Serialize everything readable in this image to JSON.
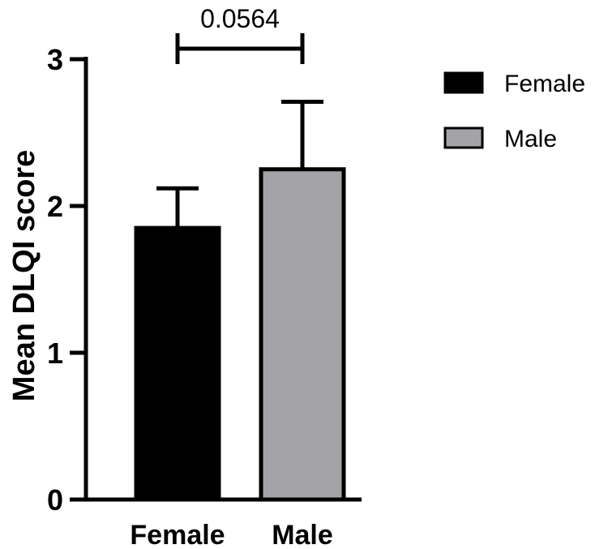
{
  "chart_data": {
    "type": "bar",
    "categories": [
      "Female",
      "Male"
    ],
    "values": [
      1.85,
      2.25
    ],
    "errors": [
      0.27,
      0.46
    ],
    "colors": [
      "#000000",
      "#a4a4a8"
    ],
    "ylabel": "Mean DLQI score",
    "xlabel": "",
    "ylim": [
      0,
      3
    ],
    "yticks": [
      "0",
      "1",
      "2",
      "3"
    ],
    "grid": false,
    "legend": {
      "position": "top-right",
      "entries": [
        {
          "label": "Female",
          "color": "#000000"
        },
        {
          "label": "Male",
          "color": "#a4a4a8"
        }
      ]
    },
    "annotation": {
      "text": "0.0564",
      "between": [
        "Female",
        "Male"
      ]
    }
  }
}
